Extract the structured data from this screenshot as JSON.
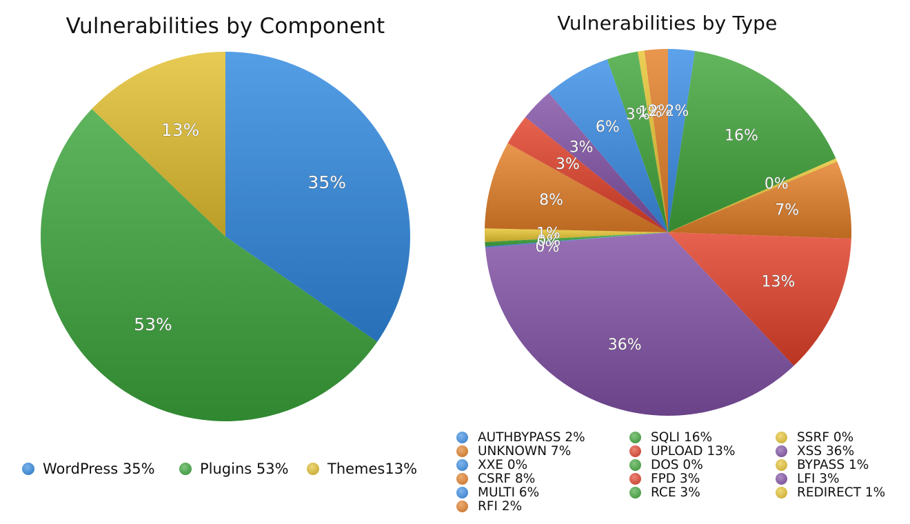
{
  "chart_data": [
    {
      "type": "pie",
      "title": "Vulnerabilities by Component",
      "slices": [
        {
          "label": "WordPress",
          "value": 35,
          "display": "35%",
          "legend": "WordPress 35%",
          "color": "#2f89e0"
        },
        {
          "label": "Plugins",
          "value": 53,
          "display": "53%",
          "legend": "Plugins 53%",
          "color": "#3ba53b"
        },
        {
          "label": "Themes",
          "value": 13,
          "display": "13%",
          "legend": "Themes13%",
          "color": "#e2c02e"
        }
      ],
      "legend_position": "bottom"
    },
    {
      "type": "pie",
      "title": "Vulnerabilities by Type",
      "slices": [
        {
          "label": "AUTHBYPASS",
          "value": 2.4,
          "display": "2%",
          "legend": "AUTHBYPASS 2%",
          "color": "#3a8ee6"
        },
        {
          "label": "SQLI",
          "value": 16.4,
          "display": "16%",
          "legend": "SQLI 16%",
          "color": "#41a63b"
        },
        {
          "label": "SSRF",
          "value": 0.3,
          "display": "0%",
          "legend": "SSRF 0%",
          "color": "#e8c531"
        },
        {
          "label": "UNKNOWN",
          "value": 7.0,
          "display": "7%",
          "legend": "UNKNOWN 7%",
          "color": "#e47f27"
        },
        {
          "label": "UPLOAD",
          "value": 12.7,
          "display": "13%",
          "legend": "UPLOAD 13%",
          "color": "#e2412a"
        },
        {
          "label": "XSS",
          "value": 36.5,
          "display": "36%",
          "legend": "XSS 36%",
          "color": "#8150a6"
        },
        {
          "label": "XXE",
          "value": 0.1,
          "display": "0%",
          "legend": "XXE 0%",
          "color": "#3a8ee6"
        },
        {
          "label": "DOS",
          "value": 0.4,
          "display": "0%",
          "legend": "DOS 0%",
          "color": "#41a63b"
        },
        {
          "label": "BYPASS",
          "value": 1.2,
          "display": "1%",
          "legend": "BYPASS 1%",
          "color": "#e8c531"
        },
        {
          "label": "CSRF",
          "value": 7.9,
          "display": "8%",
          "legend": "CSRF 8%",
          "color": "#e47f27"
        },
        {
          "label": "FPD",
          "value": 2.8,
          "display": "3%",
          "legend": "FPD 3%",
          "color": "#e2412a"
        },
        {
          "label": "LFI",
          "value": 3.0,
          "display": "3%",
          "legend": "LFI 3%",
          "color": "#8150a6"
        },
        {
          "label": "MULTI",
          "value": 6.0,
          "display": "6%",
          "legend": "MULTI 6%",
          "color": "#3a8ee6"
        },
        {
          "label": "RCE",
          "value": 2.8,
          "display": "3%",
          "legend": "RCE 3%",
          "color": "#41a63b"
        },
        {
          "label": "REDIRECT",
          "value": 0.6,
          "display": "1%",
          "legend": "REDIRECT 1%",
          "color": "#e8c531"
        },
        {
          "label": "RFI",
          "value": 2.1,
          "display": "2%",
          "legend": "RFI 2%",
          "color": "#e47f27"
        }
      ],
      "legend_position": "bottom"
    }
  ]
}
